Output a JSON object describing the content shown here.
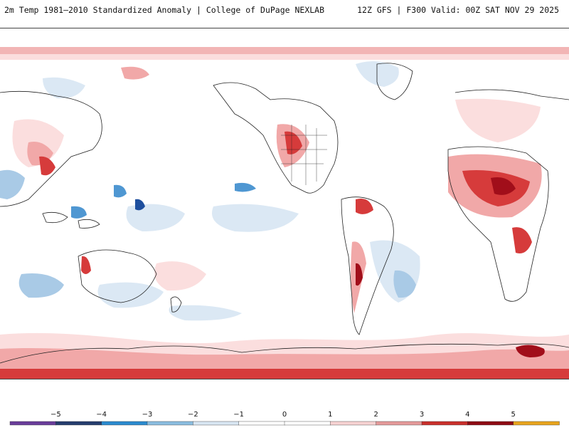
{
  "header": {
    "title_left": "2m Temp 1981–2010 Standardized Anomaly | College of DuPage NEXLAB",
    "title_right": "12Z GFS | F300 Valid: 00Z SAT NOV 29 2025"
  },
  "map": {
    "name": "world-anomaly-map",
    "colors": {
      "ocean_land_base": "#ffffff",
      "coastline": "#222222",
      "neg1": "#dbe8f4",
      "neg2": "#a9cae6",
      "neg3": "#4f97d2",
      "neg4": "#1e4f9e",
      "pos1": "#fbdede",
      "pos2": "#f1a8a8",
      "pos3": "#d63b3b",
      "pos4": "#a10e1a"
    }
  },
  "colorbar": {
    "labels": [
      "−5",
      "−4",
      "−3",
      "−2",
      "−1",
      "0",
      "1",
      "2",
      "3",
      "4",
      "5"
    ],
    "segment_colors": [
      "#6a3d9a",
      "#253d6e",
      "#2b8bcf",
      "#8bbde0",
      "#d9e7f3",
      "#ffffff",
      "#ffffff",
      "#f7d3d3",
      "#e59a9a",
      "#c9302c",
      "#8e0a14",
      "#e8a51e"
    ]
  }
}
